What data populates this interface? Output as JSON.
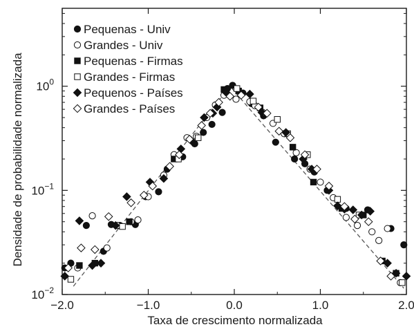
{
  "chart_data": {
    "type": "scatter",
    "title": "",
    "xlabel": "Taxa de crescimento normalizada",
    "ylabel": "Densidade de probabilidade normalizada",
    "xlim": [
      -2.0,
      2.0
    ],
    "ylim": [
      0.01,
      5.6
    ],
    "yscale": "log",
    "grid": false,
    "legend_position": "top-left",
    "x_ticks": [
      {
        "value": -2.0,
        "label": "−2.0"
      },
      {
        "value": -1.0,
        "label": "−1.0"
      },
      {
        "value": 0.0,
        "label": "0.0"
      },
      {
        "value": 1.0,
        "label": "1.0"
      },
      {
        "value": 2.0,
        "label": "2.0"
      }
    ],
    "y_ticks": [
      {
        "value": 0.01,
        "base": "10",
        "exp": "−2"
      },
      {
        "value": 0.1,
        "base": "10",
        "exp": "−1"
      },
      {
        "value": 1,
        "base": "10",
        "exp": "0"
      }
    ],
    "fit_line": {
      "style": "dashed",
      "color": "#555555",
      "points": [
        [
          -1.87,
          0.012
        ],
        [
          -0.05,
          1.0
        ],
        [
          1.97,
          0.0115
        ]
      ]
    },
    "series": [
      {
        "name": "Pequenas - Univ",
        "marker": "circle",
        "filled": true,
        "points": [
          [
            -1.97,
            0.018
          ],
          [
            -1.9,
            0.02
          ],
          [
            -1.72,
            0.046
          ],
          [
            -1.52,
            0.026
          ],
          [
            -1.43,
            0.047
          ],
          [
            -1.33,
            0.046
          ],
          [
            -1.15,
            0.047
          ],
          [
            -1.03,
            0.087
          ],
          [
            -0.88,
            0.097
          ],
          [
            -0.78,
            0.16
          ],
          [
            -0.6,
            0.21
          ],
          [
            -0.46,
            0.28
          ],
          [
            -0.36,
            0.36
          ],
          [
            -0.26,
            0.43
          ],
          [
            -0.14,
            0.56
          ],
          [
            -0.08,
            0.95
          ],
          [
            -0.02,
            1.02
          ],
          [
            0.1,
            0.86
          ],
          [
            0.2,
            0.68
          ],
          [
            0.34,
            0.52
          ],
          [
            0.48,
            0.29
          ],
          [
            0.7,
            0.2
          ],
          [
            0.82,
            0.18
          ],
          [
            0.93,
            0.15
          ],
          [
            1.08,
            0.1
          ],
          [
            1.3,
            0.067
          ],
          [
            1.55,
            0.065
          ],
          [
            1.82,
            0.043
          ],
          [
            1.97,
            0.03
          ]
        ]
      },
      {
        "name": "Grandes - Univ",
        "marker": "circle",
        "filled": false,
        "points": [
          [
            -1.82,
            0.018
          ],
          [
            -1.65,
            0.057
          ],
          [
            -1.48,
            0.028
          ],
          [
            -1.36,
            0.046
          ],
          [
            -1.2,
            0.05
          ],
          [
            -1.12,
            0.052
          ],
          [
            -1.0,
            0.087
          ],
          [
            -0.82,
            0.14
          ],
          [
            -0.7,
            0.22
          ],
          [
            -0.55,
            0.32
          ],
          [
            -0.44,
            0.33
          ],
          [
            -0.32,
            0.5
          ],
          [
            -0.22,
            0.66
          ],
          [
            -0.12,
            0.82
          ],
          [
            0.02,
            0.75
          ],
          [
            0.18,
            0.71
          ],
          [
            0.24,
            0.65
          ],
          [
            0.33,
            0.56
          ],
          [
            0.45,
            0.44
          ],
          [
            0.58,
            0.35
          ],
          [
            0.72,
            0.23
          ],
          [
            0.88,
            0.16
          ],
          [
            1.0,
            0.12
          ],
          [
            1.15,
            0.085
          ],
          [
            1.3,
            0.055
          ],
          [
            1.43,
            0.046
          ],
          [
            1.6,
            0.04
          ],
          [
            1.68,
            0.033
          ],
          [
            1.78,
            0.043
          ],
          [
            1.93,
            0.013
          ]
        ]
      },
      {
        "name": "Pequenas - Firmas",
        "marker": "square",
        "filled": true,
        "points": [
          [
            -1.8,
            0.019
          ],
          [
            -1.62,
            0.02
          ],
          [
            -1.22,
            0.05
          ],
          [
            -0.7,
            0.2
          ],
          [
            -0.12,
            0.93
          ],
          [
            0.05,
            0.9
          ],
          [
            0.3,
            0.62
          ],
          [
            0.68,
            0.26
          ],
          [
            0.92,
            0.12
          ],
          [
            1.25,
            0.067
          ],
          [
            1.5,
            0.058
          ],
          [
            1.72,
            0.021
          ],
          [
            1.88,
            0.016
          ]
        ]
      },
      {
        "name": "Grandes - Firmas",
        "marker": "square",
        "filled": false,
        "points": [
          [
            -1.9,
            0.014
          ],
          [
            -1.3,
            0.045
          ],
          [
            -0.65,
            0.2
          ],
          [
            -0.42,
            0.32
          ],
          [
            0.03,
            0.95
          ],
          [
            0.22,
            0.72
          ],
          [
            0.5,
            0.48
          ],
          [
            0.62,
            0.35
          ],
          [
            0.85,
            0.22
          ],
          [
            1.2,
            0.082
          ],
          [
            1.45,
            0.058
          ],
          [
            1.95,
            0.013
          ]
        ]
      },
      {
        "name": "Pequenos - Países",
        "marker": "diamond",
        "filled": true,
        "points": [
          [
            -1.97,
            0.015
          ],
          [
            -1.8,
            0.051
          ],
          [
            -1.65,
            0.019
          ],
          [
            -1.55,
            0.02
          ],
          [
            -1.38,
            0.046
          ],
          [
            -1.25,
            0.087
          ],
          [
            -0.98,
            0.12
          ],
          [
            -0.82,
            0.13
          ],
          [
            -0.62,
            0.25
          ],
          [
            -0.5,
            0.3
          ],
          [
            -0.35,
            0.5
          ],
          [
            -0.25,
            0.55
          ],
          [
            -0.2,
            0.63
          ],
          [
            -0.1,
            0.88
          ],
          [
            0.18,
            0.84
          ],
          [
            0.32,
            0.56
          ],
          [
            0.6,
            0.36
          ],
          [
            0.8,
            0.2
          ],
          [
            0.9,
            0.16
          ],
          [
            1.1,
            0.1
          ],
          [
            1.2,
            0.071
          ],
          [
            1.28,
            0.066
          ],
          [
            1.38,
            0.065
          ],
          [
            1.48,
            0.058
          ],
          [
            1.58,
            0.063
          ],
          [
            1.78,
            0.02
          ],
          [
            1.88,
            0.016
          ],
          [
            2.0,
            0.015
          ]
        ]
      },
      {
        "name": "Grandes - Países",
        "marker": "diamond",
        "filled": false,
        "points": [
          [
            -1.93,
            0.018
          ],
          [
            -1.78,
            0.028
          ],
          [
            -1.62,
            0.027
          ],
          [
            -1.46,
            0.056
          ],
          [
            -1.2,
            0.076
          ],
          [
            -1.05,
            0.09
          ],
          [
            -0.95,
            0.11
          ],
          [
            -0.75,
            0.17
          ],
          [
            -0.64,
            0.22
          ],
          [
            -0.52,
            0.31
          ],
          [
            -0.38,
            0.42
          ],
          [
            -0.28,
            0.55
          ],
          [
            -0.18,
            0.7
          ],
          [
            -0.05,
            0.8
          ],
          [
            0.08,
            0.82
          ],
          [
            0.28,
            0.63
          ],
          [
            0.38,
            0.55
          ],
          [
            0.52,
            0.37
          ],
          [
            0.65,
            0.32
          ],
          [
            0.82,
            0.22
          ],
          [
            0.96,
            0.16
          ],
          [
            1.1,
            0.11
          ],
          [
            1.28,
            0.07
          ],
          [
            1.4,
            0.053
          ],
          [
            1.56,
            0.05
          ],
          [
            1.7,
            0.021
          ],
          [
            1.82,
            0.015
          ]
        ]
      }
    ]
  }
}
